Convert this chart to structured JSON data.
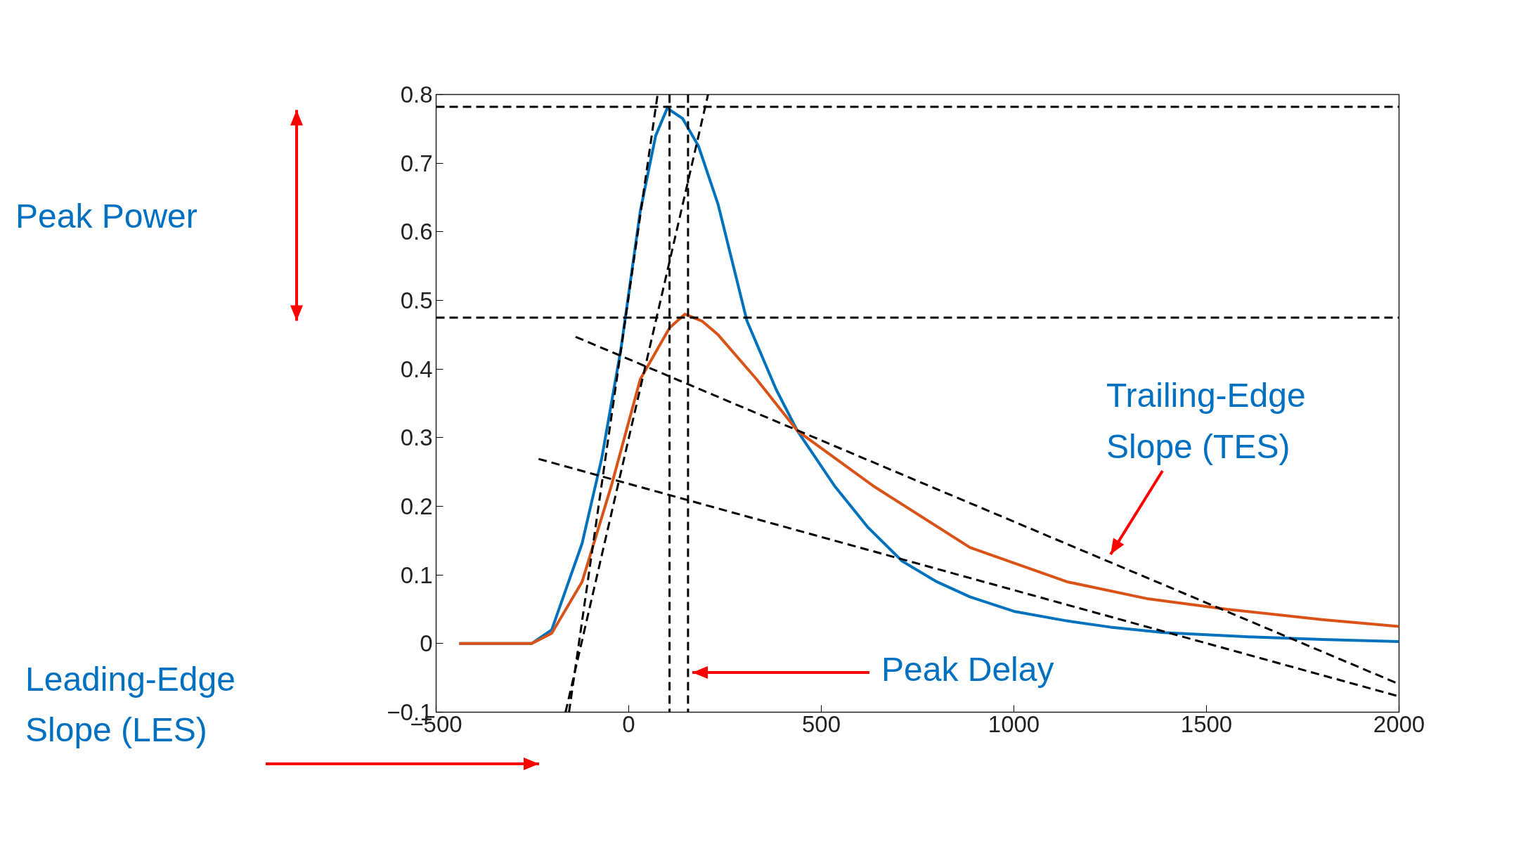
{
  "chart_data": {
    "type": "line",
    "xlim": [
      -500,
      2000
    ],
    "ylim": [
      -0.1,
      0.8
    ],
    "xticks": [
      {
        "value": -500,
        "label": "−500"
      },
      0,
      500,
      1000,
      1500,
      2000
    ],
    "yticks": [
      {
        "value": -0.1,
        "label": "−0.1"
      },
      0,
      0.1,
      0.2,
      0.3,
      0.4,
      0.5,
      0.6,
      0.7,
      0.8
    ],
    "grid": false,
    "line_style": "solid",
    "marker": "none",
    "series": [
      {
        "color": "#0072bd",
        "x": [
          -440,
          -252,
          -200,
          -121,
          -70,
          -20,
          30,
          70,
          100,
          140,
          181,
          232,
          307,
          383,
          438,
          534,
          620,
          710,
          800,
          886,
          1000,
          1138,
          1250,
          1390,
          1600,
          1800,
          2000
        ],
        "values": [
          0,
          0,
          0.02,
          0.146,
          0.27,
          0.43,
          0.63,
          0.74,
          0.78,
          0.765,
          0.725,
          0.64,
          0.47,
          0.37,
          0.31,
          0.23,
          0.17,
          0.12,
          0.09,
          0.068,
          0.047,
          0.033,
          0.024,
          0.016,
          0.01,
          0.006,
          0.003
        ]
      },
      {
        "color": "#d95319",
        "x": [
          -440,
          -252,
          -200,
          -121,
          -45,
          30,
          106,
          146,
          190,
          232,
          332,
          438,
          634,
          886,
          1138,
          1350,
          1553,
          1800,
          2000
        ],
        "values": [
          0,
          0,
          0.015,
          0.09,
          0.23,
          0.385,
          0.46,
          0.48,
          0.47,
          0.45,
          0.385,
          0.31,
          0.23,
          0.14,
          0.09,
          0.065,
          0.05,
          0.035,
          0.025
        ]
      },
      {
        "type": "line",
        "color": "#000000",
        "line_style": "dashed",
        "x": [
          -164,
          206
        ],
        "values": [
          -0.1,
          0.8
        ]
      },
      {
        "type": "line",
        "color": "#000000",
        "line_style": "dashed",
        "x": [
          -155,
          75
        ],
        "values": [
          -0.1,
          0.8
        ]
      },
      {
        "type": "line",
        "color": "#000000",
        "line_style": "dashed",
        "x": [
          -138,
          2000
        ],
        "values": [
          0.447,
          -0.059
        ]
      },
      {
        "type": "line",
        "color": "#000000",
        "line_style": "dashed",
        "x": [
          -234,
          2000
        ],
        "values": [
          0.269,
          -0.077
        ]
      }
    ],
    "ref_lines": [
      {
        "axis": "y",
        "value": 0.782,
        "color": "#000000",
        "line_style": "dashed"
      },
      {
        "axis": "y",
        "value": 0.475,
        "color": "#000000",
        "line_style": "dashed"
      },
      {
        "axis": "x",
        "value": 106,
        "color": "#000000",
        "line_style": "dashed"
      },
      {
        "axis": "x",
        "value": 154,
        "color": "#000000",
        "line_style": "dashed"
      }
    ],
    "annotations": [
      "Peak Power",
      "Leading-Edge Slope (LES)",
      "Trailing-Edge Slope (TES)",
      "Peak Delay"
    ]
  }
}
